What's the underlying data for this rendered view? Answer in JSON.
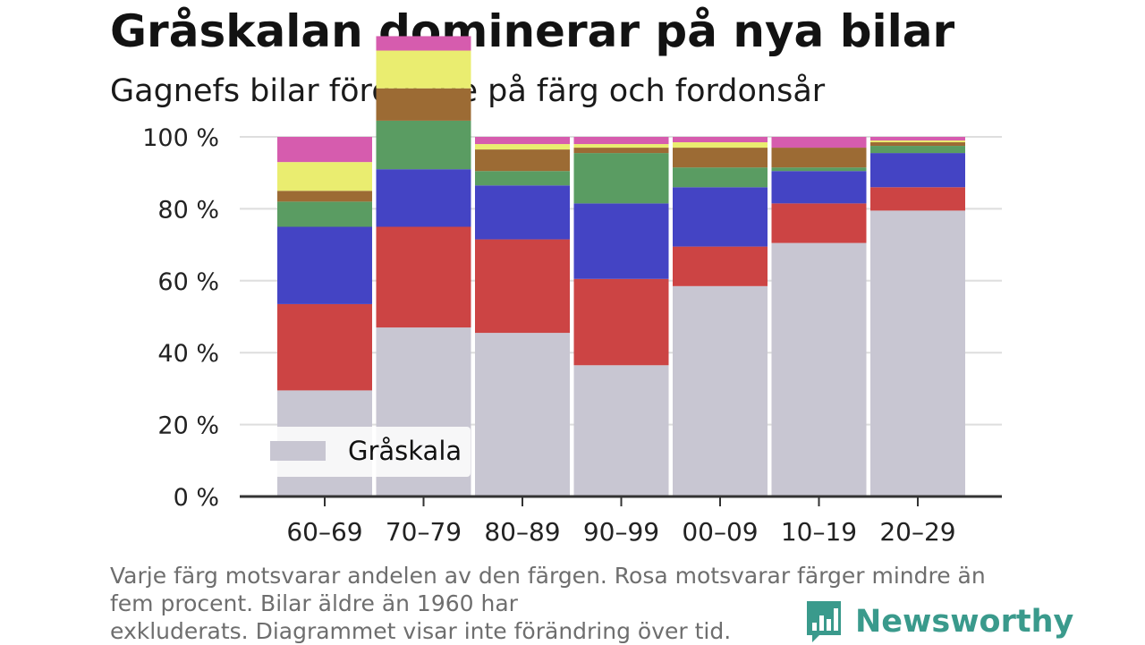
{
  "title": "Gråskalan dominerar på nya bilar",
  "subtitle": "Gagnefs bilar fördelade på färg och fordonsår",
  "footnote": {
    "line1": "Varje färg motsvarar andelen av den färgen. Rosa motsvarar färger mindre än",
    "line2": "fem procent. Bilar äldre än 1960 har",
    "line3": "exkluderats. Diagrammet visar inte förändring över tid."
  },
  "brand": {
    "name": "Newsworthy",
    "icon": "bar-chart-speech-bubble-icon",
    "color": "#3a9a8c"
  },
  "chart_data": {
    "type": "bar",
    "stacked": true,
    "normalized": true,
    "categories": [
      "60–69",
      "70–79",
      "80–89",
      "90–99",
      "00–09",
      "10–19",
      "20–29"
    ],
    "series": [
      {
        "name": "Gråskala",
        "color": "#c8c6d2",
        "values": [
          29.5,
          47.0,
          45.5,
          36.5,
          58.5,
          70.5,
          79.5
        ]
      },
      {
        "color": "#cc4444",
        "values": [
          24.0,
          28.0,
          26.0,
          24.0,
          11.0,
          11.0,
          6.5
        ]
      },
      {
        "color": "#4444c4",
        "values": [
          21.5,
          16.0,
          15.0,
          21.0,
          16.5,
          9.0,
          9.5
        ]
      },
      {
        "color": "#5a9c62",
        "values": [
          7.0,
          13.5,
          4.0,
          14.0,
          5.5,
          1.0,
          2.0
        ]
      },
      {
        "color": "#9c6b34",
        "values": [
          3.0,
          9.0,
          6.0,
          1.5,
          5.5,
          5.5,
          1.0
        ]
      },
      {
        "color": "#eaed70",
        "values": [
          8.0,
          10.5,
          1.5,
          1.0,
          1.5,
          0.0,
          0.5
        ]
      },
      {
        "color": "#d65cae",
        "values": [
          7.0,
          4.0,
          2.0,
          2.0,
          1.5,
          3.0,
          1.0
        ]
      }
    ],
    "ylim": [
      0,
      100
    ],
    "yticks": [
      0,
      20,
      40,
      60,
      80,
      100
    ],
    "ytick_suffix": " %",
    "grid": true,
    "legend": {
      "position": "bottom-left",
      "entries": [
        "Gråskala"
      ]
    }
  }
}
